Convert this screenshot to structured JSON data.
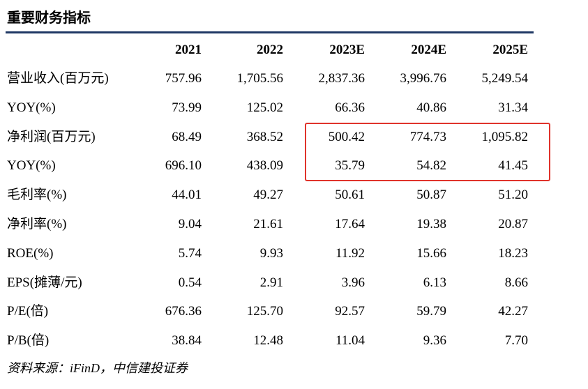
{
  "header": {
    "title": "重要财务指标"
  },
  "table": {
    "columns": [
      "2021",
      "2022",
      "2023E",
      "2024E",
      "2025E"
    ],
    "rows": [
      {
        "label": "营业收入(百万元)",
        "values": [
          "757.96",
          "1,705.56",
          "2,837.36",
          "3,996.76",
          "5,249.54"
        ]
      },
      {
        "label": "YOY(%)",
        "values": [
          "73.99",
          "125.02",
          "66.36",
          "40.86",
          "31.34"
        ]
      },
      {
        "label": "净利润(百万元)",
        "values": [
          "68.49",
          "368.52",
          "500.42",
          "774.73",
          "1,095.82"
        ]
      },
      {
        "label": "YOY(%)",
        "values": [
          "696.10",
          "438.09",
          "35.79",
          "54.82",
          "41.45"
        ]
      },
      {
        "label": "毛利率(%)",
        "values": [
          "44.01",
          "49.27",
          "50.61",
          "50.87",
          "51.20"
        ]
      },
      {
        "label": "净利率(%)",
        "values": [
          "9.04",
          "21.61",
          "17.64",
          "19.38",
          "20.87"
        ]
      },
      {
        "label": "ROE(%)",
        "values": [
          "5.74",
          "9.93",
          "11.92",
          "15.66",
          "18.23"
        ]
      },
      {
        "label": "EPS(摊薄/元)",
        "values": [
          "0.54",
          "2.91",
          "3.96",
          "6.13",
          "8.66"
        ]
      },
      {
        "label": "P/E(倍)",
        "values": [
          "676.36",
          "125.70",
          "92.57",
          "59.79",
          "42.27"
        ]
      },
      {
        "label": "P/B(倍)",
        "values": [
          "38.84",
          "12.48",
          "11.04",
          "9.36",
          "7.70"
        ]
      }
    ]
  },
  "footer": {
    "source": "资料来源：iFinD，中信建投证券"
  }
}
